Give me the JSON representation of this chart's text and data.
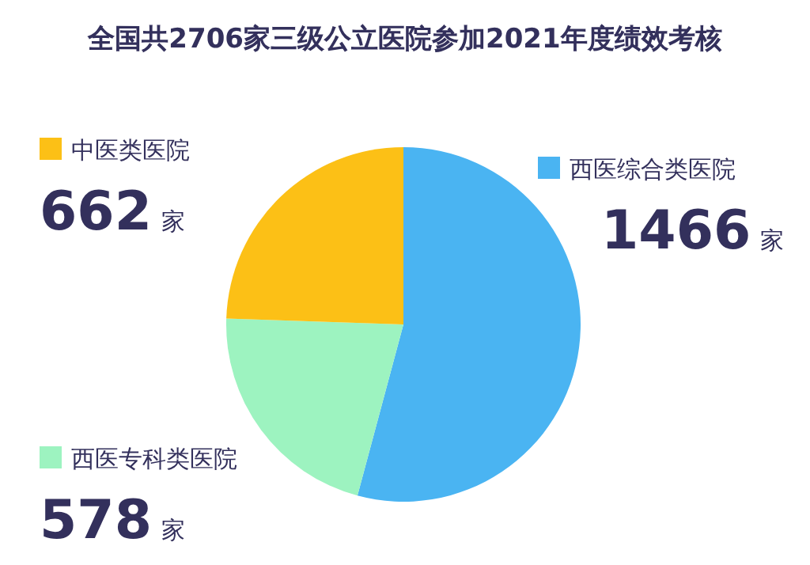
{
  "chart_data": {
    "type": "pie",
    "title": "全国共2706家三级公立医院参加2021年度绩效考核",
    "categories": [
      "西医综合类医院",
      "西医专科类医院",
      "中医类医院"
    ],
    "values": [
      1466,
      578,
      662
    ],
    "colors": [
      "#4ab4f2",
      "#9df3c0",
      "#fcc016"
    ],
    "value_labels": [
      "1466 家",
      "578 家",
      "662 家"
    ],
    "legend": "left"
  }
}
